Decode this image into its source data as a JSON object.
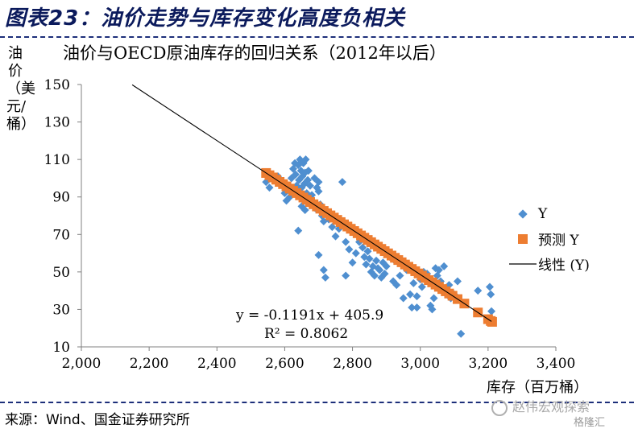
{
  "figure_title": "图表23：油价走势与库存变化高度负相关",
  "source_text": "来源：Wind、国金证券研究所",
  "watermark": {
    "account": "赵伟宏观探索",
    "platform": "格隆汇"
  },
  "colors": {
    "actual": "#4f8fd0",
    "predicted": "#ed7d31",
    "trend": "#000000",
    "axis": "#808080",
    "title_navy": "#0b1a5c"
  },
  "chart_data": {
    "type": "scatter",
    "title": "油价与OECD原油库存的回归关系（2012年以后）",
    "xlabel": "库存（百万桶）",
    "ylabel": "油价（美元/桶）",
    "xlim": [
      2000,
      3400
    ],
    "ylim": [
      10,
      150
    ],
    "xticks": [
      2000,
      2200,
      2400,
      2600,
      2800,
      3000,
      3200,
      3400
    ],
    "yticks": [
      10,
      30,
      50,
      70,
      90,
      110,
      130,
      150
    ],
    "xtick_labels": [
      "2,000",
      "2,200",
      "2,400",
      "2,600",
      "2,800",
      "3,000",
      "3,200",
      "3,400"
    ],
    "ytick_labels": [
      "10",
      "30",
      "50",
      "70",
      "90",
      "110",
      "130",
      "150"
    ],
    "grid": false,
    "legend_position": "right",
    "legend": [
      {
        "label": "Y",
        "marker": "diamond"
      },
      {
        "label": "预测 Y",
        "marker": "square"
      },
      {
        "label": "线性 (Y)",
        "marker": "line"
      }
    ],
    "regression": {
      "slope": -0.1191,
      "intercept": 405.9,
      "x_range": [
        2150,
        3210
      ],
      "equation_text": "y = -0.1191x + 405.9",
      "r2_text": "R² = 0.8062"
    },
    "series": [
      {
        "name": "Y",
        "marker": "diamond",
        "points": [
          [
            2545,
            98
          ],
          [
            2555,
            95
          ],
          [
            2570,
            100
          ],
          [
            2580,
            101
          ],
          [
            2590,
            97
          ],
          [
            2600,
            92
          ],
          [
            2605,
            88
          ],
          [
            2615,
            90
          ],
          [
            2620,
            100
          ],
          [
            2625,
            105
          ],
          [
            2630,
            108
          ],
          [
            2632,
            102
          ],
          [
            2635,
            96
          ],
          [
            2638,
            93
          ],
          [
            2640,
            107
          ],
          [
            2642,
            99
          ],
          [
            2645,
            110
          ],
          [
            2648,
            104
          ],
          [
            2650,
            95
          ],
          [
            2652,
            101
          ],
          [
            2655,
            108
          ],
          [
            2658,
            97
          ],
          [
            2660,
            103
          ],
          [
            2662,
            110
          ],
          [
            2665,
            92
          ],
          [
            2668,
            99
          ],
          [
            2670,
            104
          ],
          [
            2672,
            88
          ],
          [
            2675,
            96
          ],
          [
            2680,
            91
          ],
          [
            2685,
            85
          ],
          [
            2688,
            100
          ],
          [
            2690,
            84
          ],
          [
            2695,
            95
          ],
          [
            2700,
            93
          ],
          [
            2705,
            86
          ],
          [
            2710,
            80
          ],
          [
            2715,
            77
          ],
          [
            2640,
            72
          ],
          [
            2650,
            85
          ],
          [
            2660,
            83
          ],
          [
            2700,
            98
          ],
          [
            2720,
            82
          ],
          [
            2730,
            78
          ],
          [
            2740,
            74
          ],
          [
            2745,
            80
          ],
          [
            2750,
            69
          ],
          [
            2760,
            73
          ],
          [
            2700,
            59
          ],
          [
            2715,
            51
          ],
          [
            2720,
            47
          ],
          [
            2780,
            48
          ],
          [
            2790,
            62
          ],
          [
            2800,
            55
          ],
          [
            2810,
            60
          ],
          [
            2820,
            66
          ],
          [
            2830,
            63
          ],
          [
            2835,
            58
          ],
          [
            2840,
            54
          ],
          [
            2845,
            61
          ],
          [
            2850,
            57
          ],
          [
            2855,
            50
          ],
          [
            2860,
            53
          ],
          [
            2865,
            48
          ],
          [
            2870,
            56
          ],
          [
            2875,
            52
          ],
          [
            2880,
            51
          ],
          [
            2885,
            47
          ],
          [
            2890,
            55
          ],
          [
            2895,
            49
          ],
          [
            2900,
            53
          ],
          [
            2910,
            58
          ],
          [
            2920,
            45
          ],
          [
            2925,
            56
          ],
          [
            2930,
            43
          ],
          [
            2940,
            48
          ],
          [
            2950,
            55
          ],
          [
            2960,
            51
          ],
          [
            2970,
            38
          ],
          [
            2975,
            31
          ],
          [
            2980,
            44
          ],
          [
            2990,
            37
          ],
          [
            3000,
            46
          ],
          [
            3005,
            42
          ],
          [
            3010,
            50
          ],
          [
            3020,
            49
          ],
          [
            3025,
            47
          ],
          [
            3030,
            32
          ],
          [
            3035,
            30
          ],
          [
            3040,
            36
          ],
          [
            3045,
            52
          ],
          [
            3050,
            48
          ],
          [
            3055,
            51
          ],
          [
            3060,
            45
          ],
          [
            3065,
            40
          ],
          [
            3070,
            53
          ],
          [
            3075,
            41
          ],
          [
            3080,
            39
          ],
          [
            3085,
            43
          ],
          [
            3090,
            36
          ],
          [
            3100,
            38
          ],
          [
            3110,
            45
          ],
          [
            3120,
            17
          ],
          [
            3170,
            40
          ],
          [
            3205,
            42
          ],
          [
            3208,
            38
          ],
          [
            3210,
            29
          ],
          [
            2770,
            98
          ],
          [
            2780,
            66
          ],
          [
            2950,
            36
          ],
          [
            2990,
            31
          ]
        ]
      },
      {
        "name": "预测 Y",
        "marker": "square",
        "x_values": [
          2545,
          2555,
          2565,
          2575,
          2585,
          2595,
          2605,
          2615,
          2625,
          2635,
          2645,
          2655,
          2665,
          2675,
          2685,
          2695,
          2705,
          2715,
          2725,
          2735,
          2745,
          2755,
          2765,
          2775,
          2785,
          2795,
          2805,
          2815,
          2825,
          2835,
          2845,
          2855,
          2865,
          2875,
          2885,
          2895,
          2905,
          2915,
          2925,
          2935,
          2945,
          2955,
          2965,
          2975,
          2985,
          2995,
          3005,
          3015,
          3025,
          3035,
          3045,
          3055,
          3065,
          3075,
          3085,
          3095,
          3110,
          3130,
          3170,
          3200,
          3208,
          3212
        ]
      }
    ]
  }
}
